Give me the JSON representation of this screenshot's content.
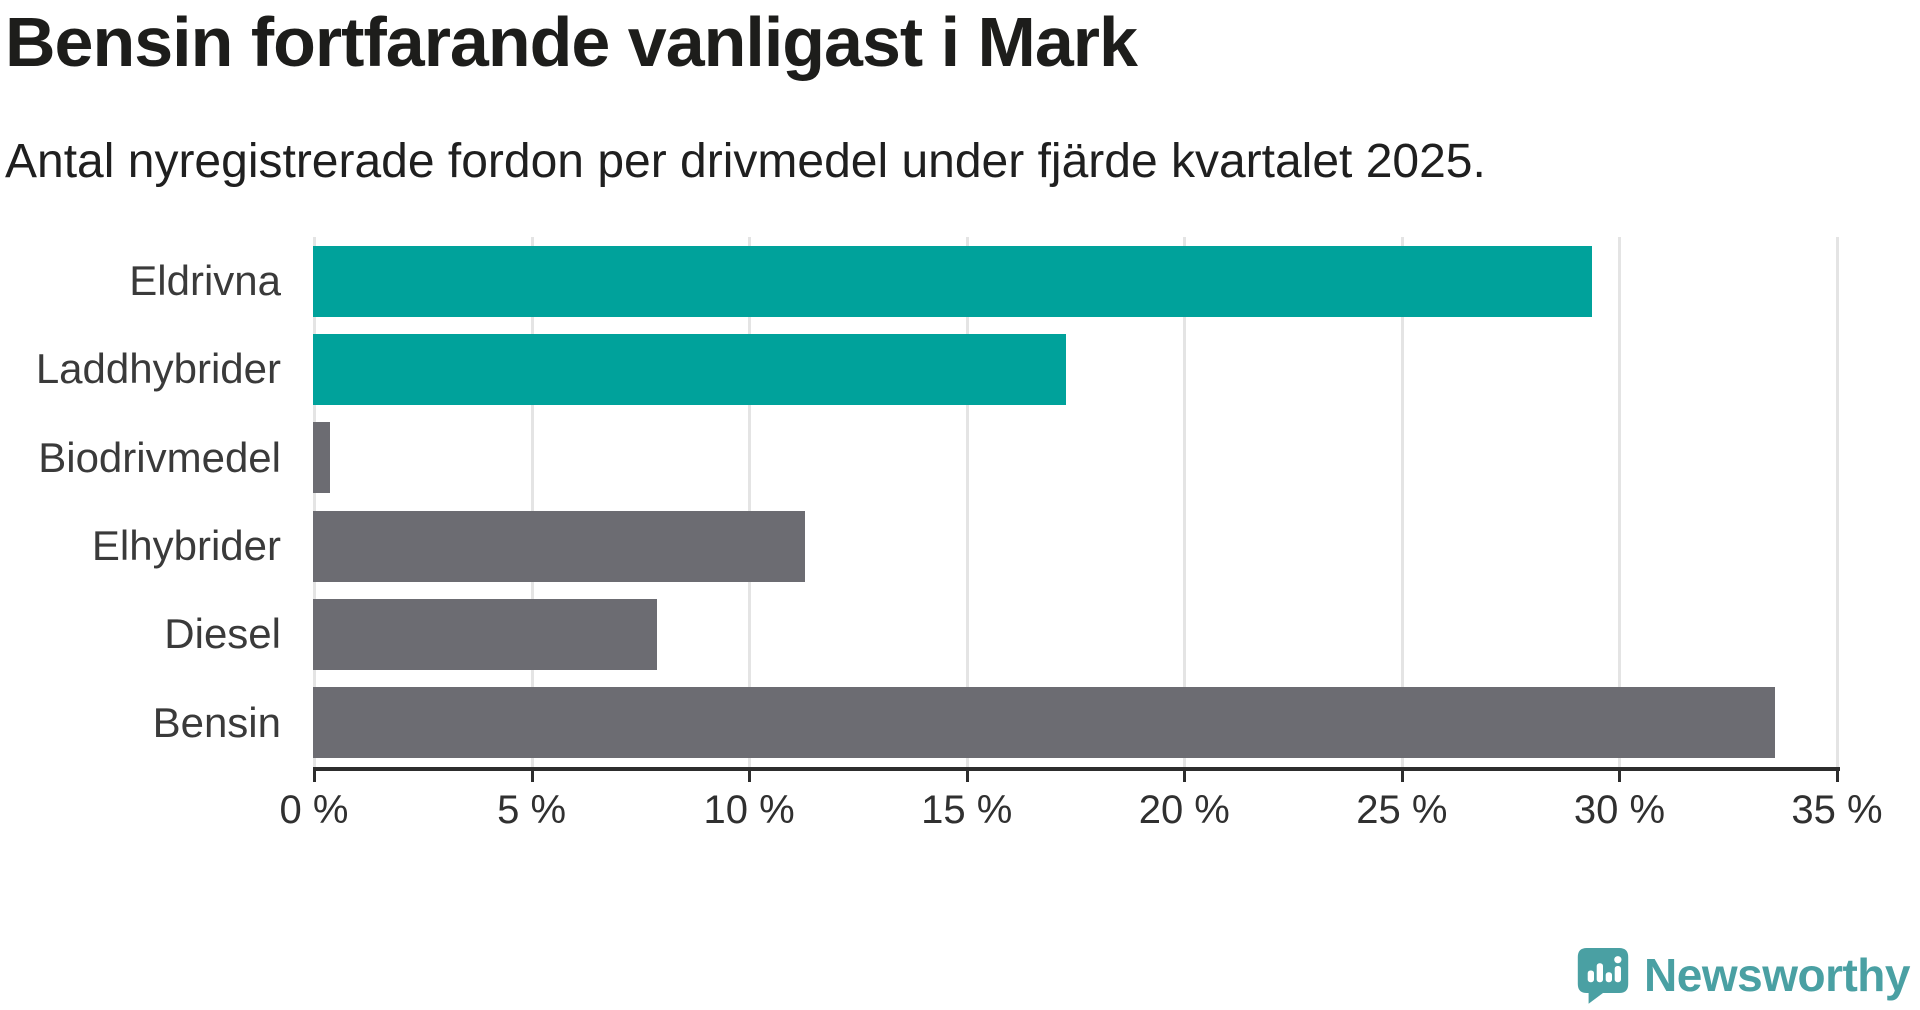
{
  "chart_data": {
    "type": "bar",
    "orientation": "horizontal",
    "title": "Bensin fortfarande vanligast i Mark",
    "subtitle": "Antal nyregistrerade fordon per drivmedel under fjärde kvartalet 2025.",
    "categories": [
      "Eldrivna",
      "Laddhybrider",
      "Biodrivmedel",
      "Elhybrider",
      "Diesel",
      "Bensin"
    ],
    "values": [
      29.4,
      17.3,
      0.4,
      11.3,
      7.9,
      33.6
    ],
    "unit": "%",
    "xlim": [
      0,
      35
    ],
    "x_ticks": [
      0,
      5,
      10,
      15,
      20,
      25,
      30,
      35
    ],
    "x_tick_labels": [
      "0 %",
      "5 %",
      "10 %",
      "15 %",
      "20 %",
      "25 %",
      "30 %",
      "35 %"
    ],
    "bar_colors": [
      "#00a29b",
      "#00a29b",
      "#6c6c72",
      "#6c6c72",
      "#6c6c72",
      "#6c6c72"
    ],
    "accent_color": "#00a29b",
    "default_color": "#6c6c72",
    "grid": "vertical",
    "legend": "none"
  },
  "branding": {
    "name": "Newsworthy",
    "color": "#4aa0a3",
    "icon": "newsworthy-speech-bubble-chart-icon"
  }
}
